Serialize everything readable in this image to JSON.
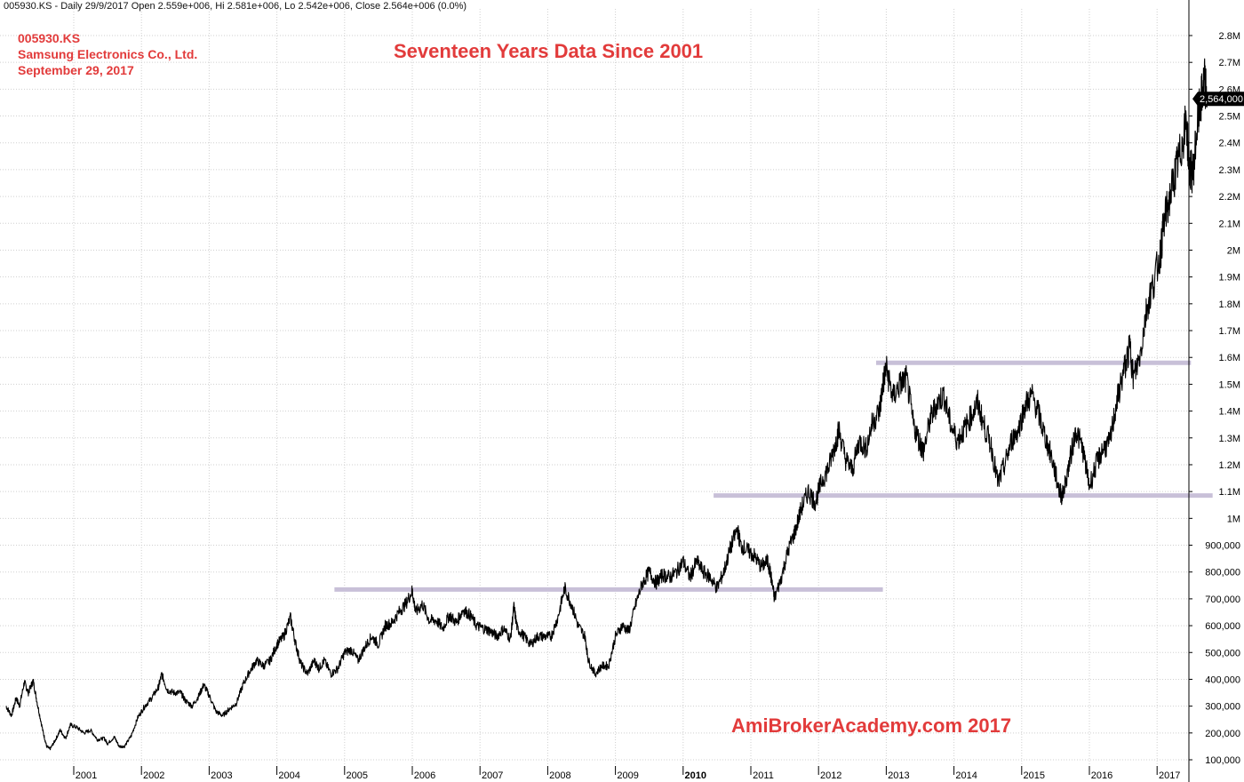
{
  "header": "005930.KS - Daily 29/9/2017 Open 2.559e+006, Hi 2.581e+006, Lo 2.542e+006, Close 2.564e+006 (0.0%)",
  "annotations": {
    "ticker": "005930.KS",
    "company": "Samsung Electronics Co., Ltd.",
    "date": "September 29, 2017",
    "title": "Seventeen Years Data Since 2001",
    "watermark": "AmiBrokerAcademy.com  2017"
  },
  "colors": {
    "price": "#000000",
    "grid": "#cfcfcf",
    "support_line": "#c8c0d8",
    "accent": "#e23b3b",
    "last_price_badge": "#000000"
  },
  "chart_data": {
    "type": "line",
    "x_unit": "year",
    "ylim": [
      60000,
      2840000
    ],
    "grid": true,
    "y_ticks": [
      {
        "v": 100000,
        "label": "100,000"
      },
      {
        "v": 200000,
        "label": "200,000"
      },
      {
        "v": 300000,
        "label": "300,000"
      },
      {
        "v": 400000,
        "label": "400,000"
      },
      {
        "v": 500000,
        "label": "500,000"
      },
      {
        "v": 600000,
        "label": "600,000"
      },
      {
        "v": 700000,
        "label": "700,000"
      },
      {
        "v": 800000,
        "label": "800,000"
      },
      {
        "v": 900000,
        "label": "900,000"
      },
      {
        "v": 1000000,
        "label": "1M"
      },
      {
        "v": 1100000,
        "label": "1.1M"
      },
      {
        "v": 1200000,
        "label": "1.2M"
      },
      {
        "v": 1300000,
        "label": "1.3M"
      },
      {
        "v": 1400000,
        "label": "1.4M"
      },
      {
        "v": 1500000,
        "label": "1.5M"
      },
      {
        "v": 1600000,
        "label": "1.6M"
      },
      {
        "v": 1700000,
        "label": "1.7M"
      },
      {
        "v": 1800000,
        "label": "1.8M"
      },
      {
        "v": 1900000,
        "label": "1.9M"
      },
      {
        "v": 2000000,
        "label": "2M"
      },
      {
        "v": 2100000,
        "label": "2.1M"
      },
      {
        "v": 2200000,
        "label": "2.2M"
      },
      {
        "v": 2300000,
        "label": "2.3M"
      },
      {
        "v": 2400000,
        "label": "2.4M"
      },
      {
        "v": 2500000,
        "label": "2.5M"
      },
      {
        "v": 2600000,
        "label": "2.6M"
      },
      {
        "v": 2700000,
        "label": "2.7M"
      },
      {
        "v": 2800000,
        "label": "2.8M"
      }
    ],
    "x_ticks": [
      {
        "year": 2001,
        "label": "2001",
        "bold": false
      },
      {
        "year": 2002,
        "label": "2002",
        "bold": false
      },
      {
        "year": 2003,
        "label": "2003",
        "bold": false
      },
      {
        "year": 2004,
        "label": "2004",
        "bold": false
      },
      {
        "year": 2005,
        "label": "2005",
        "bold": false
      },
      {
        "year": 2006,
        "label": "2006",
        "bold": false
      },
      {
        "year": 2007,
        "label": "2007",
        "bold": false
      },
      {
        "year": 2008,
        "label": "2008",
        "bold": false
      },
      {
        "year": 2009,
        "label": "2009",
        "bold": false
      },
      {
        "year": 2010,
        "label": "2010",
        "bold": true
      },
      {
        "year": 2011,
        "label": "2011",
        "bold": false
      },
      {
        "year": 2012,
        "label": "2012",
        "bold": false
      },
      {
        "year": 2013,
        "label": "2013",
        "bold": false
      },
      {
        "year": 2014,
        "label": "2014",
        "bold": false
      },
      {
        "year": 2015,
        "label": "2015",
        "bold": false
      },
      {
        "year": 2016,
        "label": "2016",
        "bold": false
      },
      {
        "year": 2017,
        "label": "2017",
        "bold": false
      }
    ],
    "last_price_label": "2,564,000",
    "last_price": 2564000,
    "series": [
      {
        "points": [
          [
            2000.0,
            300000
          ],
          [
            2000.08,
            265000
          ],
          [
            2000.15,
            330000
          ],
          [
            2000.2,
            300000
          ],
          [
            2000.27,
            390000
          ],
          [
            2000.33,
            350000
          ],
          [
            2000.4,
            395000
          ],
          [
            2000.47,
            300000
          ],
          [
            2000.55,
            200000
          ],
          [
            2000.6,
            150000
          ],
          [
            2000.65,
            140000
          ],
          [
            2000.72,
            170000
          ],
          [
            2000.8,
            210000
          ],
          [
            2000.88,
            180000
          ],
          [
            2000.95,
            230000
          ],
          [
            2001.05,
            220000
          ],
          [
            2001.15,
            200000
          ],
          [
            2001.25,
            210000
          ],
          [
            2001.35,
            175000
          ],
          [
            2001.45,
            180000
          ],
          [
            2001.5,
            160000
          ],
          [
            2001.6,
            185000
          ],
          [
            2001.67,
            150000
          ],
          [
            2001.75,
            150000
          ],
          [
            2001.85,
            190000
          ],
          [
            2001.95,
            260000
          ],
          [
            2002.05,
            300000
          ],
          [
            2002.15,
            330000
          ],
          [
            2002.25,
            370000
          ],
          [
            2002.3,
            420000
          ],
          [
            2002.38,
            360000
          ],
          [
            2002.48,
            350000
          ],
          [
            2002.58,
            350000
          ],
          [
            2002.65,
            320000
          ],
          [
            2002.75,
            300000
          ],
          [
            2002.85,
            340000
          ],
          [
            2002.92,
            380000
          ],
          [
            2003.0,
            340000
          ],
          [
            2003.1,
            280000
          ],
          [
            2003.2,
            265000
          ],
          [
            2003.3,
            290000
          ],
          [
            2003.4,
            310000
          ],
          [
            2003.5,
            380000
          ],
          [
            2003.6,
            430000
          ],
          [
            2003.7,
            470000
          ],
          [
            2003.8,
            450000
          ],
          [
            2003.9,
            470000
          ],
          [
            2004.0,
            530000
          ],
          [
            2004.1,
            560000
          ],
          [
            2004.2,
            630000
          ],
          [
            2004.28,
            530000
          ],
          [
            2004.35,
            460000
          ],
          [
            2004.45,
            420000
          ],
          [
            2004.55,
            470000
          ],
          [
            2004.62,
            440000
          ],
          [
            2004.7,
            470000
          ],
          [
            2004.8,
            420000
          ],
          [
            2004.9,
            440000
          ],
          [
            2005.0,
            500000
          ],
          [
            2005.1,
            510000
          ],
          [
            2005.2,
            470000
          ],
          [
            2005.3,
            520000
          ],
          [
            2005.4,
            560000
          ],
          [
            2005.5,
            530000
          ],
          [
            2005.6,
            600000
          ],
          [
            2005.7,
            610000
          ],
          [
            2005.8,
            650000
          ],
          [
            2005.9,
            680000
          ],
          [
            2006.0,
            730000
          ],
          [
            2006.05,
            650000
          ],
          [
            2006.15,
            680000
          ],
          [
            2006.25,
            620000
          ],
          [
            2006.35,
            620000
          ],
          [
            2006.45,
            590000
          ],
          [
            2006.55,
            640000
          ],
          [
            2006.65,
            610000
          ],
          [
            2006.75,
            660000
          ],
          [
            2006.85,
            640000
          ],
          [
            2006.95,
            600000
          ],
          [
            2007.05,
            590000
          ],
          [
            2007.15,
            580000
          ],
          [
            2007.25,
            560000
          ],
          [
            2007.35,
            590000
          ],
          [
            2007.45,
            550000
          ],
          [
            2007.5,
            670000
          ],
          [
            2007.55,
            590000
          ],
          [
            2007.65,
            560000
          ],
          [
            2007.75,
            530000
          ],
          [
            2007.85,
            560000
          ],
          [
            2007.95,
            560000
          ],
          [
            2008.05,
            560000
          ],
          [
            2008.15,
            630000
          ],
          [
            2008.25,
            740000
          ],
          [
            2008.35,
            680000
          ],
          [
            2008.45,
            600000
          ],
          [
            2008.55,
            560000
          ],
          [
            2008.6,
            470000
          ],
          [
            2008.7,
            420000
          ],
          [
            2008.8,
            450000
          ],
          [
            2008.9,
            450000
          ],
          [
            2009.0,
            560000
          ],
          [
            2009.1,
            600000
          ],
          [
            2009.2,
            580000
          ],
          [
            2009.3,
            680000
          ],
          [
            2009.4,
            760000
          ],
          [
            2009.5,
            800000
          ],
          [
            2009.6,
            760000
          ],
          [
            2009.7,
            790000
          ],
          [
            2009.8,
            780000
          ],
          [
            2009.9,
            800000
          ],
          [
            2010.0,
            840000
          ],
          [
            2010.1,
            780000
          ],
          [
            2010.2,
            840000
          ],
          [
            2010.3,
            800000
          ],
          [
            2010.4,
            780000
          ],
          [
            2010.5,
            740000
          ],
          [
            2010.6,
            800000
          ],
          [
            2010.7,
            890000
          ],
          [
            2010.8,
            960000
          ],
          [
            2010.85,
            900000
          ],
          [
            2010.95,
            880000
          ],
          [
            2011.05,
            860000
          ],
          [
            2011.15,
            820000
          ],
          [
            2011.25,
            840000
          ],
          [
            2011.3,
            780000
          ],
          [
            2011.35,
            700000
          ],
          [
            2011.45,
            780000
          ],
          [
            2011.55,
            880000
          ],
          [
            2011.65,
            950000
          ],
          [
            2011.75,
            1040000
          ],
          [
            2011.85,
            1100000
          ],
          [
            2011.95,
            1060000
          ],
          [
            2012.05,
            1140000
          ],
          [
            2012.15,
            1190000
          ],
          [
            2012.25,
            1280000
          ],
          [
            2012.3,
            1330000
          ],
          [
            2012.4,
            1220000
          ],
          [
            2012.5,
            1180000
          ],
          [
            2012.6,
            1290000
          ],
          [
            2012.7,
            1260000
          ],
          [
            2012.8,
            1360000
          ],
          [
            2012.9,
            1400000
          ],
          [
            2012.95,
            1500000
          ],
          [
            2013.0,
            1560000
          ],
          [
            2013.1,
            1450000
          ],
          [
            2013.2,
            1500000
          ],
          [
            2013.3,
            1520000
          ],
          [
            2013.4,
            1350000
          ],
          [
            2013.5,
            1280000
          ],
          [
            2013.55,
            1250000
          ],
          [
            2013.65,
            1370000
          ],
          [
            2013.75,
            1430000
          ],
          [
            2013.85,
            1460000
          ],
          [
            2013.95,
            1350000
          ],
          [
            2014.05,
            1290000
          ],
          [
            2014.15,
            1330000
          ],
          [
            2014.25,
            1380000
          ],
          [
            2014.35,
            1430000
          ],
          [
            2014.45,
            1340000
          ],
          [
            2014.55,
            1270000
          ],
          [
            2014.65,
            1130000
          ],
          [
            2014.75,
            1200000
          ],
          [
            2014.85,
            1290000
          ],
          [
            2014.95,
            1330000
          ],
          [
            2015.05,
            1420000
          ],
          [
            2015.15,
            1460000
          ],
          [
            2015.25,
            1390000
          ],
          [
            2015.35,
            1300000
          ],
          [
            2015.45,
            1220000
          ],
          [
            2015.55,
            1110000
          ],
          [
            2015.6,
            1080000
          ],
          [
            2015.7,
            1200000
          ],
          [
            2015.8,
            1330000
          ],
          [
            2015.9,
            1260000
          ],
          [
            2016.0,
            1120000
          ],
          [
            2016.1,
            1200000
          ],
          [
            2016.2,
            1260000
          ],
          [
            2016.3,
            1280000
          ],
          [
            2016.4,
            1430000
          ],
          [
            2016.5,
            1540000
          ],
          [
            2016.6,
            1640000
          ],
          [
            2016.65,
            1520000
          ],
          [
            2016.75,
            1610000
          ],
          [
            2016.85,
            1790000
          ],
          [
            2016.95,
            1880000
          ],
          [
            2017.05,
            1990000
          ],
          [
            2017.1,
            2100000
          ],
          [
            2017.2,
            2210000
          ],
          [
            2017.28,
            2300000
          ],
          [
            2017.35,
            2370000
          ],
          [
            2017.43,
            2480000
          ],
          [
            2017.48,
            2300000
          ],
          [
            2017.53,
            2290000
          ],
          [
            2017.6,
            2480000
          ],
          [
            2017.66,
            2570000
          ],
          [
            2017.7,
            2630000
          ],
          [
            2017.74,
            2564000
          ]
        ]
      }
    ],
    "support_lines": [
      {
        "from": 2004.85,
        "to": 2012.95,
        "value": 735000
      },
      {
        "from": 2010.45,
        "to": 2017.82,
        "value": 1085000
      },
      {
        "from": 2012.85,
        "to": 2017.5,
        "value": 1580000
      }
    ]
  }
}
